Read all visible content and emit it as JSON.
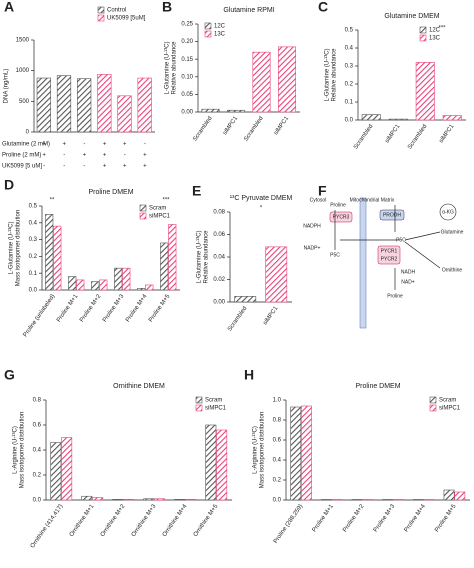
{
  "chart_data": [
    {
      "type": "bar",
      "panel": "A",
      "ylabel": [
        "DNA (ng/mL)"
      ],
      "ylim": [
        0,
        1500
      ],
      "yticks": [
        0,
        500,
        1000,
        1500
      ],
      "series": [
        {
          "name": "Control",
          "color": "#555555",
          "values": [
            880,
            920,
            870,
            null,
            null,
            null
          ]
        },
        {
          "name": "UK5099 [5uM]",
          "color": "#e8417c",
          "values": [
            null,
            null,
            null,
            940,
            590,
            880
          ]
        }
      ],
      "conditions": [
        {
          "label": "Glutamine (2 mM)",
          "signs": [
            "+",
            "+",
            "-",
            "+",
            "+",
            "-"
          ]
        },
        {
          "label": "Proline (2 mM)",
          "signs": [
            "+",
            "-",
            "+",
            "+",
            "-",
            "+"
          ]
        },
        {
          "label": "UK5099 [5 uM]",
          "signs": [
            "-",
            "-",
            "-",
            "+",
            "+",
            "+"
          ]
        }
      ]
    },
    {
      "type": "bar",
      "panel": "B",
      "title": "Glutamine RPMI",
      "ylabel": [
        "L-Glutamine (U-¹³C)",
        "Relative abundance"
      ],
      "ylim": [
        0,
        0.25
      ],
      "yticks": [
        {
          "value": 0,
          "label": "0.00"
        },
        0.05,
        {
          "value": 0.1,
          "label": "0.10"
        },
        0.15,
        {
          "value": 0.2,
          "label": "0.20"
        },
        0.25
      ],
      "categories": [
        "Scrambled",
        "siMPC1",
        "Scrambled",
        "siMPC1"
      ],
      "series": [
        {
          "name": "12C",
          "color": "#555555",
          "values": [
            0.008,
            0.005,
            null,
            null
          ]
        },
        {
          "name": "13C",
          "color": "#e8417c",
          "values": [
            null,
            null,
            0.17,
            0.185
          ]
        }
      ]
    },
    {
      "type": "bar",
      "panel": "C",
      "title": "Glutamine DMEM",
      "ylabel": [
        "L-Glutamine (U-¹³C)",
        "Relative abundance"
      ],
      "ylim": [
        0,
        0.5
      ],
      "yticks": [
        {
          "value": 0,
          "label": "0.0"
        },
        0.1,
        0.2,
        0.3,
        0.4,
        0.5
      ],
      "categories": [
        "Scrambled",
        "siMPC1",
        "Scrambled",
        "siMPC1"
      ],
      "annotations": [
        "***"
      ],
      "series": [
        {
          "name": "12C",
          "color": "#555555",
          "values": [
            0.03,
            0.005,
            null,
            null
          ]
        },
        {
          "name": "13C",
          "color": "#e8417c",
          "values": [
            null,
            null,
            0.32,
            0.025
          ]
        }
      ]
    },
    {
      "type": "bar",
      "panel": "D",
      "title": "Proline DMEM",
      "ylabel": [
        "L-Glutamine (U-¹³C)",
        "Mass isotopomer distribution"
      ],
      "ylim": [
        0,
        0.5
      ],
      "yticks": [
        {
          "value": 0,
          "label": "0.0"
        },
        0.1,
        0.2,
        0.3,
        0.4,
        0.5
      ],
      "categories": [
        "Proline (unlabeled)",
        "Proline M+1",
        "Proline M+2",
        "Proline M+3",
        "Proline M+4",
        "Proline M+5"
      ],
      "annotations": [
        "**",
        "***"
      ],
      "series": [
        {
          "name": "Scram",
          "color": "#555555",
          "values": [
            0.45,
            0.08,
            0.05,
            0.13,
            0.01,
            0.28
          ]
        },
        {
          "name": "siMPC1",
          "color": "#e8417c",
          "values": [
            0.38,
            0.06,
            0.06,
            0.13,
            0.03,
            0.39
          ]
        }
      ]
    },
    {
      "type": "bar",
      "panel": "E",
      "title": "¹³C Pyruvate DMEM",
      "ylabel": [
        "L-Glutamine (U-¹³C)",
        "Relative abundance"
      ],
      "ylim": [
        0,
        0.08
      ],
      "yticks": [
        {
          "value": 0,
          "label": "0.00"
        },
        0.02,
        0.04,
        0.06,
        0.08
      ],
      "categories": [
        "Scrambled",
        "siMPC1"
      ],
      "annotations": [
        "*"
      ],
      "values": [
        0.005,
        0.049
      ],
      "colors": [
        "#555555",
        "#e8417c"
      ]
    },
    {
      "type": "bar",
      "panel": "G",
      "title": "Ornithine DMEM",
      "ylabel": [
        "L-Arginine (U-¹³C)",
        "Mass isotopomer distribution"
      ],
      "ylim": [
        0,
        0.8
      ],
      "yticks": [
        {
          "value": 0,
          "label": "0.0"
        },
        0.2,
        0.4,
        0.6,
        0.8
      ],
      "categories": [
        "Ornithine (414,417)",
        "Ornithine M+1",
        "Ornithine M+2",
        "Ornithine M+3",
        "Ornithine M+4",
        "Ornithine M+5"
      ],
      "series": [
        {
          "name": "Scram",
          "color": "#555555",
          "values": [
            0.46,
            0.03,
            0.005,
            0.01,
            0.005,
            0.6
          ]
        },
        {
          "name": "siMPC1",
          "color": "#e8417c",
          "values": [
            0.5,
            0.02,
            0.005,
            0.01,
            0.005,
            0.56
          ]
        }
      ]
    },
    {
      "type": "bar",
      "panel": "H",
      "title": "Proline DMEM",
      "ylabel": [
        "L-Arginine (U-¹³C)",
        "Mass isotopomer distribution"
      ],
      "ylim": [
        0,
        1
      ],
      "yticks": [
        {
          "value": 0,
          "label": "0.0"
        },
        0.2,
        0.4,
        0.6,
        0.8,
        {
          "value": 1,
          "label": "1.0"
        }
      ],
      "categories": [
        "Proline (288,259)",
        "Proline M+1",
        "Proline M+2",
        "Proline M+3",
        "Proline M+4",
        "Proline M+5"
      ],
      "series": [
        {
          "name": "Scram",
          "color": "#555555",
          "values": [
            0.93,
            0.005,
            0.005,
            0.005,
            0.005,
            0.1
          ]
        },
        {
          "name": "siMPC1",
          "color": "#e8417c",
          "values": [
            0.94,
            0.005,
            0.005,
            0.005,
            0.005,
            0.08
          ]
        }
      ]
    }
  ],
  "diagram": {
    "panel": "F",
    "labels": [
      "Cytosol",
      "Mitochondrial Matrix",
      "Proline",
      "PYCR3",
      "NADPH",
      "NADP+",
      "P5C",
      "PRODH",
      "P5C",
      "PYCR1",
      "PYCR2",
      "NADH",
      "NAD+",
      "Proline",
      "Glutamine",
      "Ornithine",
      "α-KG"
    ]
  }
}
